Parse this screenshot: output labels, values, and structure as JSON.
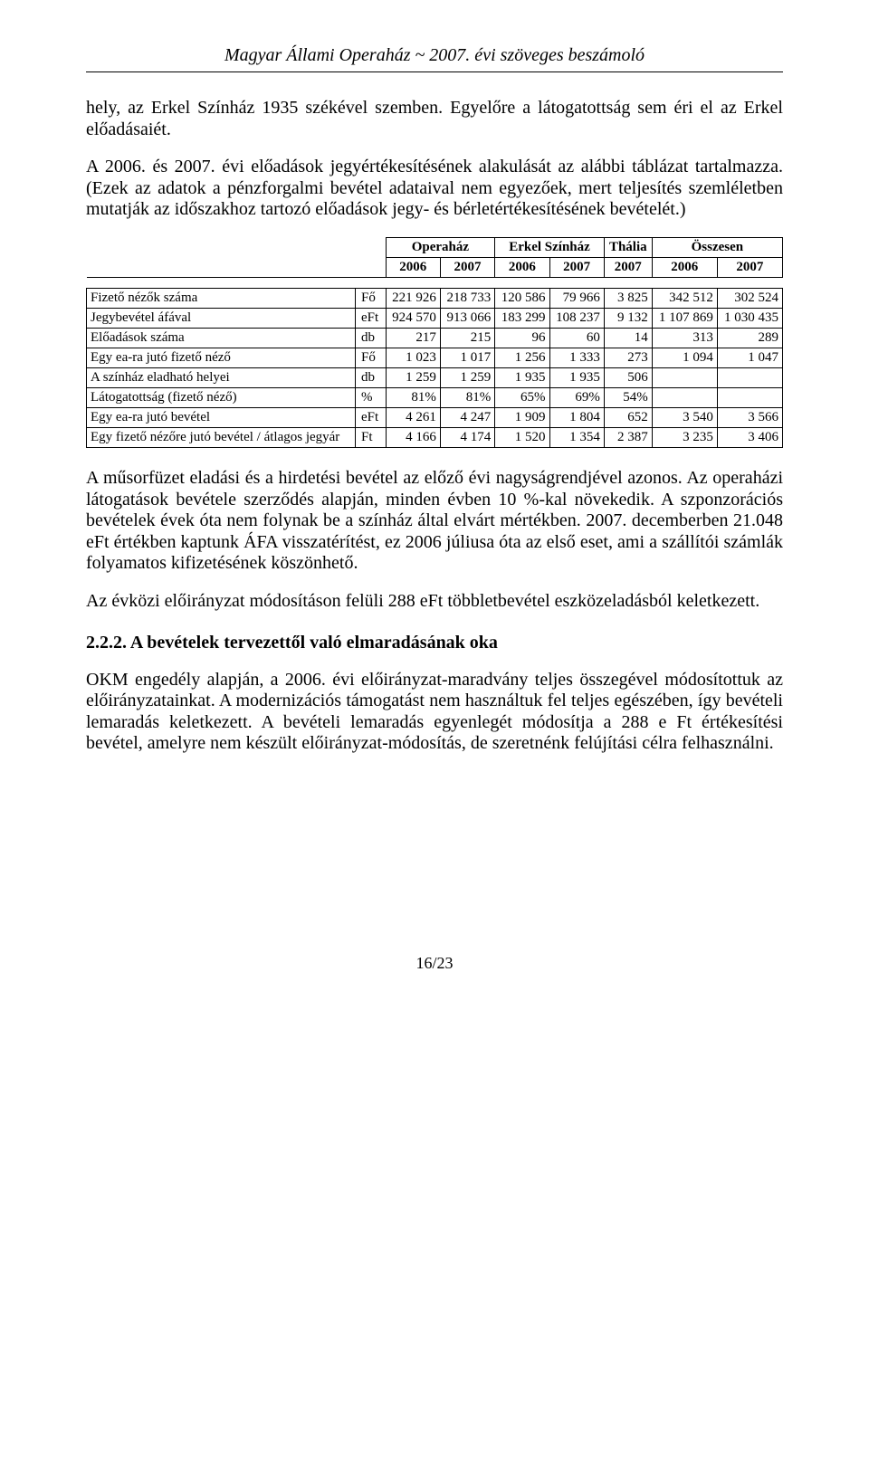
{
  "header": {
    "title": "Magyar Állami Operaház  ~  2007. évi szöveges beszámoló"
  },
  "paragraphs": {
    "p1": "hely, az Erkel Színház 1935 székével szemben. Egyelőre a látogatottság sem éri el az Erkel előadásaiét.",
    "p2": "A 2006. és 2007. évi előadások jegyértékesítésének alakulását az alábbi táblázat tartalmazza. (Ezek az adatok a pénzforgalmi bevétel adataival nem egyezőek, mert teljesítés szemléletben mutatják az időszakhoz tartozó előadások jegy- és bérletértékesítésének bevételét.)",
    "p3": "A műsorfüzet eladási és a hirdetési bevétel az előző évi nagyságrendjével azonos. Az operaházi látogatások bevétele szerződés alapján, minden évben 10 %-kal növekedik. A szponzorációs bevételek évek óta nem folynak be a színház által elvárt mértékben. 2007. decemberben 21.048 eFt értékben kaptunk ÁFA visszatérítést, ez 2006 júliusa óta az első eset, ami a szállítói számlák folyamatos kifizetésének köszönhető.",
    "p4": "Az évközi előirányzat módosításon felüli 288 eFt többletbevétel eszközeladásból keletkezett.",
    "p5": "OKM engedély alapján, a 2006. évi előirányzat-maradvány teljes összegével módosítottuk az előirányzatainkat. A modernizációs támogatást nem használtuk fel teljes egészében, így bevételi lemaradás keletkezett. A bevételi lemaradás egyenlegét módosítja a 288 e Ft értékesítési bevétel, amelyre nem készült előirányzat-módosítás, de szeretnénk felújítási célra felhasználni."
  },
  "section_heading": "2.2.2. A bevételek tervezettől való elmaradásának oka",
  "table": {
    "group_headers": [
      "Operaház",
      "Erkel Színház",
      "Thália",
      "Összesen"
    ],
    "year_headers": [
      "2006",
      "2007",
      "2006",
      "2007",
      "2007",
      "2006",
      "2007"
    ],
    "rows": [
      {
        "label": "Fizető nézők száma",
        "unit": "Fő",
        "values": [
          "221 926",
          "218 733",
          "120 586",
          "79 966",
          "3 825",
          "342 512",
          "302 524"
        ]
      },
      {
        "label": "Jegybevétel áfával",
        "unit": "eFt",
        "values": [
          "924 570",
          "913 066",
          "183 299",
          "108 237",
          "9 132",
          "1 107 869",
          "1 030 435"
        ]
      },
      {
        "label": "Előadások száma",
        "unit": "db",
        "values": [
          "217",
          "215",
          "96",
          "60",
          "14",
          "313",
          "289"
        ]
      },
      {
        "label": "Egy ea-ra jutó fizető néző",
        "unit": "Fő",
        "values": [
          "1 023",
          "1 017",
          "1 256",
          "1 333",
          "273",
          "1 094",
          "1 047"
        ]
      },
      {
        "label": "A színház eladható helyei",
        "unit": "db",
        "values": [
          "1 259",
          "1 259",
          "1 935",
          "1 935",
          "506",
          "",
          ""
        ]
      },
      {
        "label": "Látogatottság (fizető néző)",
        "unit": "%",
        "values": [
          "81%",
          "81%",
          "65%",
          "69%",
          "54%",
          "",
          ""
        ]
      },
      {
        "label": "Egy ea-ra jutó bevétel",
        "unit": "eFt",
        "values": [
          "4 261",
          "4 247",
          "1 909",
          "1 804",
          "652",
          "3 540",
          "3 566"
        ]
      },
      {
        "label": "Egy fizető nézőre jutó bevétel / átlagos jegyár",
        "unit": "Ft",
        "values": [
          "4 166",
          "4 174",
          "1 520",
          "1 354",
          "2 387",
          "3 235",
          "3 406"
        ]
      }
    ]
  },
  "footer": {
    "page_number": "16/23"
  }
}
